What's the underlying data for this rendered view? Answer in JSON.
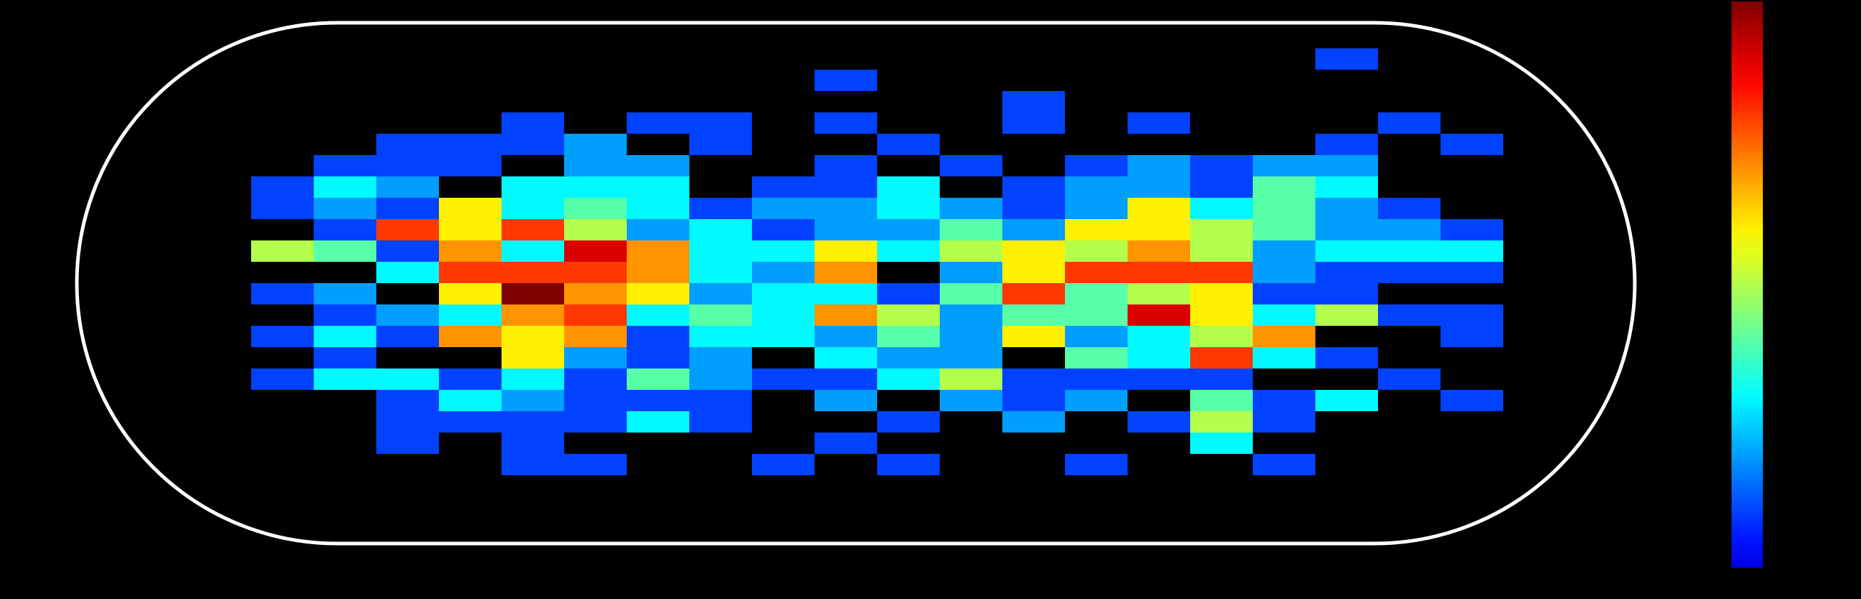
{
  "chart_data": {
    "type": "heatmap",
    "title": "",
    "xlabel": "",
    "ylabel": "",
    "outline": "stadium",
    "colormap": "jet",
    "colorbar": "right",
    "grid": false,
    "value_range": [
      0,
      10
    ],
    "rows": [
      [
        0,
        0,
        0,
        0,
        0,
        0,
        0,
        0,
        0,
        0,
        0,
        0,
        0,
        0,
        0,
        0,
        0,
        1,
        0,
        0
      ],
      [
        0,
        0,
        0,
        0,
        0,
        0,
        0,
        0,
        0,
        1,
        0,
        0,
        0,
        0,
        0,
        0,
        0,
        0,
        0,
        0
      ],
      [
        0,
        0,
        0,
        0,
        0,
        0,
        0,
        0,
        0,
        0,
        0,
        0,
        1,
        0,
        0,
        0,
        0,
        0,
        0,
        0
      ],
      [
        0,
        0,
        0,
        0,
        1,
        0,
        1,
        1,
        0,
        1,
        0,
        0,
        1,
        0,
        1,
        0,
        0,
        0,
        1,
        0
      ],
      [
        0,
        0,
        1,
        1,
        1,
        2,
        0,
        1,
        0,
        0,
        1,
        0,
        0,
        0,
        0,
        0,
        0,
        1,
        0,
        1
      ],
      [
        0,
        1,
        1,
        1,
        0,
        2,
        2,
        0,
        0,
        1,
        0,
        1,
        0,
        1,
        2,
        1,
        2,
        2,
        0,
        0
      ],
      [
        1,
        3,
        2,
        0,
        3,
        3,
        3,
        0,
        1,
        1,
        3,
        0,
        1,
        2,
        2,
        1,
        4,
        3,
        0,
        0
      ],
      [
        1,
        2,
        1,
        6,
        3,
        4,
        3,
        1,
        2,
        2,
        3,
        2,
        1,
        2,
        6,
        3,
        4,
        2,
        1,
        0
      ],
      [
        0,
        1,
        8,
        6,
        8,
        5,
        2,
        3,
        1,
        2,
        2,
        4,
        2,
        6,
        6,
        5,
        4,
        2,
        2,
        1
      ],
      [
        5,
        4,
        1,
        7,
        3,
        9,
        7,
        3,
        3,
        6,
        3,
        5,
        6,
        5,
        7,
        5,
        2,
        3,
        3,
        3
      ],
      [
        0,
        0,
        3,
        8,
        8,
        8,
        7,
        3,
        2,
        7,
        0,
        2,
        6,
        8,
        8,
        8,
        2,
        1,
        1,
        1
      ],
      [
        1,
        2,
        0,
        6,
        10,
        7,
        6,
        2,
        3,
        3,
        1,
        4,
        8,
        4,
        5,
        6,
        1,
        1,
        0,
        0
      ],
      [
        0,
        1,
        2,
        3,
        7,
        8,
        3,
        4,
        3,
        7,
        5,
        2,
        4,
        4,
        9,
        6,
        3,
        5,
        1,
        1
      ],
      [
        1,
        3,
        1,
        7,
        6,
        7,
        1,
        3,
        3,
        2,
        4,
        2,
        6,
        2,
        3,
        5,
        7,
        0,
        0,
        1
      ],
      [
        0,
        1,
        0,
        0,
        6,
        2,
        1,
        2,
        0,
        3,
        2,
        2,
        0,
        4,
        3,
        8,
        3,
        1,
        0,
        0
      ],
      [
        1,
        3,
        3,
        1,
        3,
        1,
        4,
        2,
        1,
        1,
        3,
        5,
        1,
        1,
        1,
        1,
        0,
        0,
        1,
        0
      ],
      [
        0,
        0,
        1,
        3,
        2,
        1,
        1,
        1,
        0,
        2,
        0,
        2,
        1,
        2,
        0,
        4,
        1,
        3,
        0,
        1
      ],
      [
        0,
        0,
        1,
        1,
        1,
        1,
        3,
        1,
        0,
        0,
        1,
        0,
        2,
        0,
        1,
        5,
        1,
        0,
        0,
        0
      ],
      [
        0,
        0,
        1,
        0,
        1,
        0,
        0,
        0,
        0,
        1,
        0,
        0,
        0,
        0,
        0,
        3,
        0,
        0,
        0,
        0
      ],
      [
        0,
        0,
        0,
        0,
        1,
        1,
        0,
        0,
        1,
        0,
        1,
        0,
        0,
        1,
        0,
        0,
        1,
        0,
        0,
        0
      ]
    ]
  }
}
